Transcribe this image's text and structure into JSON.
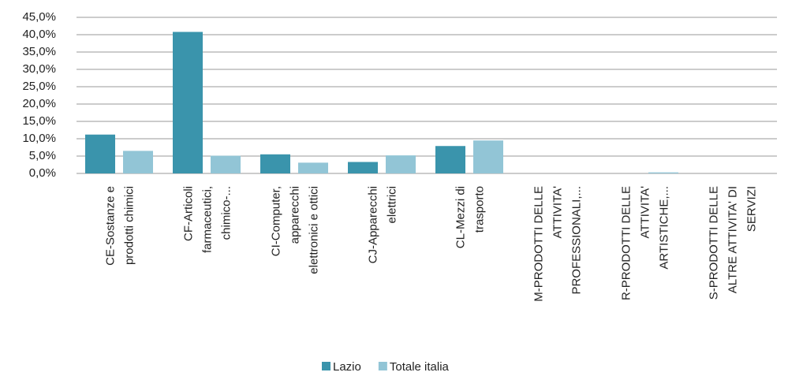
{
  "chart_data": {
    "type": "bar",
    "categories": [
      [
        "CE-Sostanze e",
        "prodotti chimici"
      ],
      [
        "CF-Articoli",
        "farmaceutici,",
        "chimico-..."
      ],
      [
        "CI-Computer,",
        "apparecchi",
        "elettronici e ottici"
      ],
      [
        "CJ-Apparecchi",
        "elettrici"
      ],
      [
        "CL-Mezzi di",
        "trasporto"
      ],
      [
        "M-PRODOTTI DELLE",
        "ATTIVITA'",
        "PROFESSIONALI,..."
      ],
      [
        "R-PRODOTTI DELLE",
        "ATTIVITA'",
        "ARTISTICHE,..."
      ],
      [
        "S-PRODOTTI DELLE",
        "ALTRE ATTIVITA' DI",
        "SERVIZI"
      ]
    ],
    "series": [
      {
        "name": "Lazio",
        "color": "#3a94ac",
        "values": [
          11.2,
          40.8,
          5.5,
          3.3,
          7.9,
          0,
          0,
          0
        ]
      },
      {
        "name": "Totale italia",
        "color": "#92c5d6",
        "values": [
          6.5,
          5.1,
          3.1,
          5.2,
          9.5,
          0,
          0.3,
          0
        ]
      }
    ],
    "ylim": [
      0,
      45
    ],
    "yticks": [
      {
        "value": 0,
        "label": "0,0%"
      },
      {
        "value": 5,
        "label": "5,0%"
      },
      {
        "value": 10,
        "label": "10,0%"
      },
      {
        "value": 15,
        "label": "15,0%"
      },
      {
        "value": 20,
        "label": "20,0%"
      },
      {
        "value": 25,
        "label": "25,0%"
      },
      {
        "value": 30,
        "label": "30,0%"
      },
      {
        "value": 35,
        "label": "35,0%"
      },
      {
        "value": 40,
        "label": "40,0%"
      },
      {
        "value": 45,
        "label": "45,0%"
      }
    ],
    "grid": true,
    "legend": "bottom"
  }
}
